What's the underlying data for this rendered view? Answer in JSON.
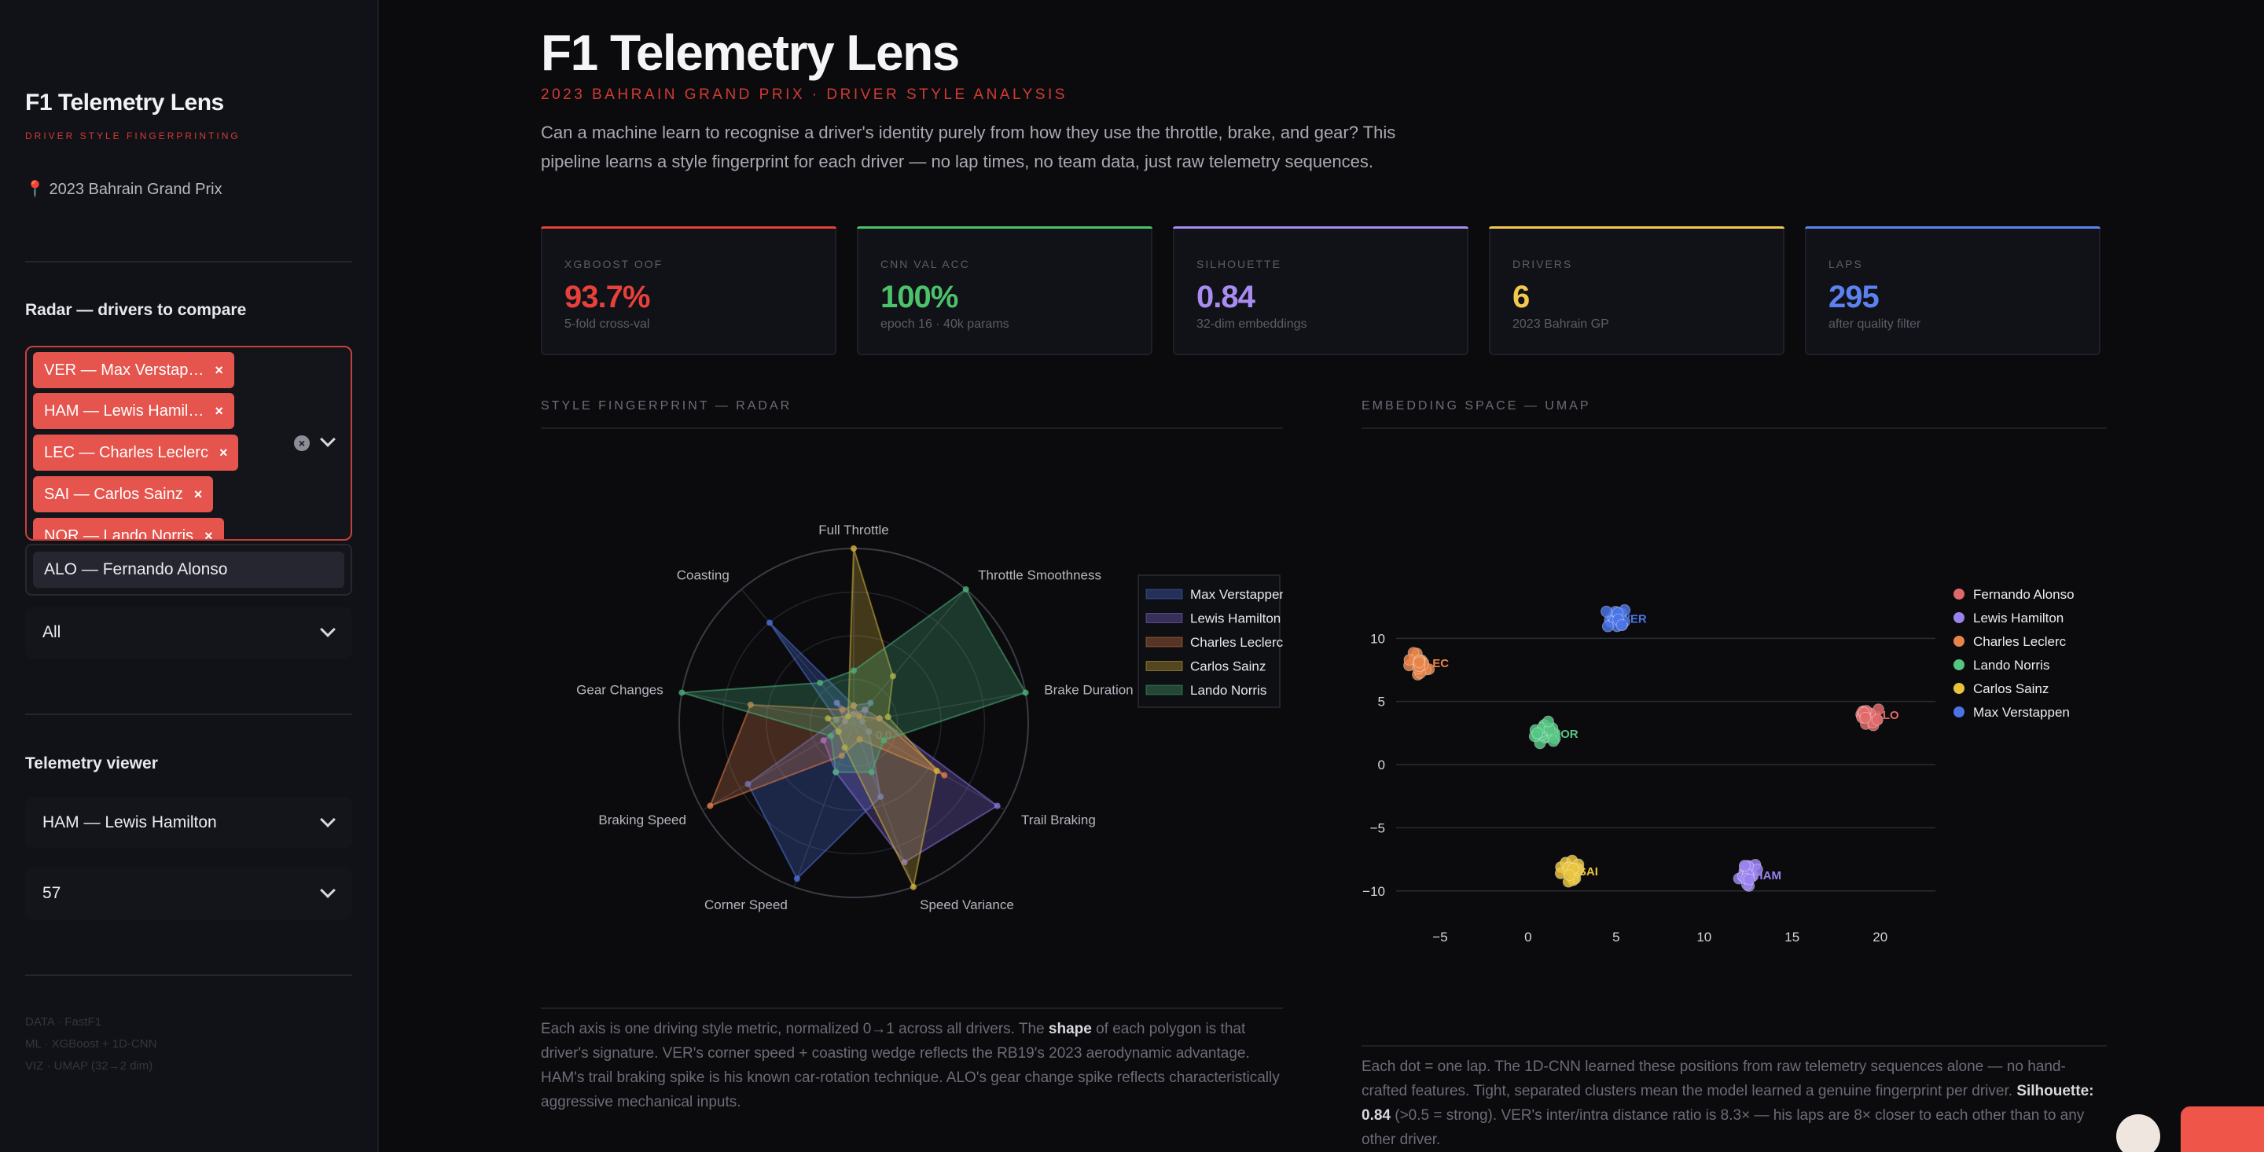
{
  "sidebar": {
    "app_title": "F1 Telemetry Lens",
    "app_subtitle": "DRIVER STYLE FINGERPRINTING",
    "location": "📍 2023 Bahrain Grand Prix",
    "radar_label": "Radar — drivers to compare",
    "selected_drivers": [
      "VER — Max Verstap…",
      "HAM — Lewis Hamil…",
      "LEC — Charles Leclerc",
      "SAI — Carlos Sainz",
      "NOR — Lando Norris"
    ],
    "dropdown_option": "ALO — Fernando Alonso",
    "filter_value": "All",
    "viewer_label": "Telemetry viewer",
    "viewer_driver": "HAM — Lewis Hamilton",
    "viewer_lap": "57",
    "footer": [
      "DATA · FastF1",
      "ML · XGBoost + 1D-CNN",
      "VIZ · UMAP (32→2 dim)"
    ]
  },
  "header": {
    "title": "F1 Telemetry Lens",
    "subtitle": "2023 BAHRAIN GRAND PRIX · DRIVER STYLE ANALYSIS",
    "intro": "Can a machine learn to recognise a driver's identity purely from how they use the throttle, brake, and gear? This pipeline learns a style fingerprint for each driver — no lap times, no team data, just raw telemetry sequences."
  },
  "metrics": [
    {
      "label": "XGBOOST OOF",
      "value": "93.7%",
      "note": "5-fold cross-val",
      "color": "#e8403a"
    },
    {
      "label": "CNN VAL ACC",
      "value": "100%",
      "note": "epoch 16 · 40k params",
      "color": "#4cc26b"
    },
    {
      "label": "SILHOUETTE",
      "value": "0.84",
      "note": "32-dim embeddings",
      "color": "#a98cf2"
    },
    {
      "label": "DRIVERS",
      "value": "6",
      "note": "2023 Bahrain GP",
      "color": "#f2c94c"
    },
    {
      "label": "LAPS",
      "value": "295",
      "note": "after quality filter",
      "color": "#5b82f0"
    }
  ],
  "radar": {
    "section_title": "STYLE FINGERPRINT — RADAR",
    "caption_a": "Each axis is one driving style metric, normalized 0→1 across all drivers. The ",
    "caption_bold": "shape",
    "caption_b": " of each polygon is that driver's signature. VER's corner speed + coasting wedge reflects the RB19's 2023 aerodynamic advantage. HAM's trail braking spike is his known car-rotation technique. ALO's gear change spike reflects characteristically aggressive mechanical inputs."
  },
  "umap": {
    "section_title": "EMBEDDING SPACE — UMAP",
    "caption_a": "Each dot = one lap. The 1D-CNN learned these positions from raw telemetry sequences alone — no hand-crafted features. Tight, separated clusters mean the model learned a genuine fingerprint per driver. ",
    "caption_bold": "Silhouette: 0.84",
    "caption_b": " (>0.5 = strong). VER's inter/intra distance ratio is 8.3× — his laps are 8× closer to each other than to any other driver."
  },
  "chart_data": [
    {
      "type": "radar",
      "axes": [
        "Full Throttle",
        "Throttle Smoothness",
        "Brake Duration",
        "Trail Braking",
        "Speed Variance",
        "Corner Speed",
        "Braking Speed",
        "Gear Changes",
        "Coasting"
      ],
      "radial_tick": "0.0",
      "rmax": 1,
      "series": [
        {
          "name": "Max Verstappen",
          "color": "#4d6fd6",
          "values": [
            0.1,
            0.15,
            0.05,
            0.1,
            0.45,
            0.95,
            0.7,
            0.1,
            0.75
          ]
        },
        {
          "name": "Lewis Hamilton",
          "color": "#8a6fe0",
          "values": [
            0.05,
            0.1,
            0.15,
            0.95,
            0.85,
            0.3,
            0.2,
            0.05,
            0.15
          ]
        },
        {
          "name": "Charles Leclerc",
          "color": "#e07d4a",
          "values": [
            0.1,
            0.05,
            0.15,
            0.6,
            0.1,
            0.2,
            0.95,
            0.6,
            0.1
          ]
        },
        {
          "name": "Carlos Sainz",
          "color": "#d4b23c",
          "values": [
            1.0,
            0.35,
            0.2,
            0.55,
            1.0,
            0.15,
            0.1,
            0.15,
            0.05
          ]
        },
        {
          "name": "Lando Norris",
          "color": "#4caf7a",
          "values": [
            0.3,
            1.0,
            1.0,
            0.2,
            0.3,
            0.3,
            0.15,
            1.0,
            0.3
          ]
        }
      ]
    },
    {
      "type": "scatter",
      "xticks": [
        -5,
        0,
        5,
        10,
        15,
        20
      ],
      "yticks": [
        10,
        5,
        0,
        -5,
        -10
      ],
      "xlim": [
        -7.5,
        21.8
      ],
      "ylim": [
        -13.5,
        14.5
      ],
      "series": [
        {
          "name": "Fernando Alonso",
          "color": "#e06868",
          "label": "ALO",
          "center": [
            19.3,
            4.0
          ]
        },
        {
          "name": "Lewis Hamilton",
          "color": "#9a82ee",
          "label": "HAM",
          "center": [
            12.5,
            -8.7
          ]
        },
        {
          "name": "Charles Leclerc",
          "color": "#e88448",
          "label": "LEC",
          "center": [
            -6.2,
            8.1
          ]
        },
        {
          "name": "Lando Norris",
          "color": "#55c583",
          "label": "NOR",
          "center": [
            1.0,
            2.5
          ]
        },
        {
          "name": "Carlos Sainz",
          "color": "#e8c33c",
          "label": "SAI",
          "center": [
            2.5,
            -8.4
          ]
        },
        {
          "name": "Max Verstappen",
          "color": "#4a74e6",
          "label": "VER",
          "center": [
            5.0,
            11.6
          ]
        }
      ]
    }
  ]
}
